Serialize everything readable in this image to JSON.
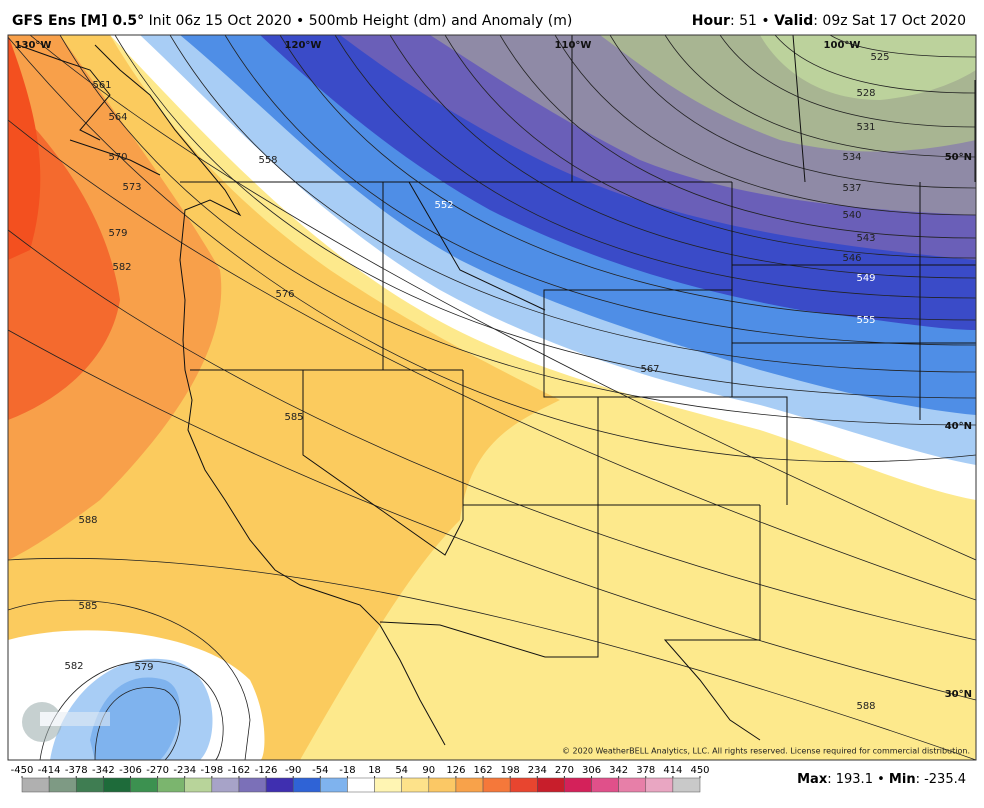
{
  "header": {
    "model": "GFS Ens [M] 0.5°",
    "description": "Init 06z 15 Oct 2020 • 500mb Height (dm) and Anomaly (m)",
    "hour_label": "Hour",
    "hour_value": ": 51",
    "separator": "•",
    "valid_label": "Valid",
    "valid_value": ": 09z Sat 17 Oct 2020"
  },
  "map": {
    "longitudes": [
      "130°W",
      "120°W",
      "110°W",
      "100°W"
    ],
    "latitudes": [
      "50°N",
      "40°N",
      "30°N"
    ],
    "contour_labels": [
      525,
      528,
      531,
      534,
      537,
      540,
      543,
      546,
      549,
      552,
      555,
      558,
      561,
      564,
      567,
      570,
      573,
      576,
      579,
      582,
      585,
      588,
      585,
      582,
      579,
      588
    ],
    "copyright": "© 2020 WeatherBELL Analytics, LLC. All rights reserved. License required for commercial distribution."
  },
  "colorbar": {
    "ticks": [
      -450,
      -414,
      -378,
      -342,
      -306,
      -270,
      -234,
      -198,
      -162,
      -126,
      -90,
      -54,
      -18,
      18,
      54,
      90,
      126,
      162,
      198,
      234,
      270,
      306,
      342,
      378,
      414,
      450
    ],
    "colors": [
      "#b0b0b0",
      "#7e9a84",
      "#3f7d52",
      "#1e6b3a",
      "#3c9150",
      "#7bb56e",
      "#b8d49a",
      "#a7a3c8",
      "#7b70b8",
      "#3f2fb0",
      "#2f63d6",
      "#7fb3ee",
      "#ffffff",
      "#fff5b3",
      "#fde28a",
      "#fbc865",
      "#f8a24a",
      "#f5783a",
      "#e8452f",
      "#c81e2b",
      "#d4215a",
      "#e0508a",
      "#e77fa8",
      "#e9a6c2",
      "#c9c9c9"
    ]
  },
  "footer": {
    "max_label": "Max",
    "max_value": ": 193.1",
    "min_label": "Min",
    "min_value": ": -235.4"
  }
}
